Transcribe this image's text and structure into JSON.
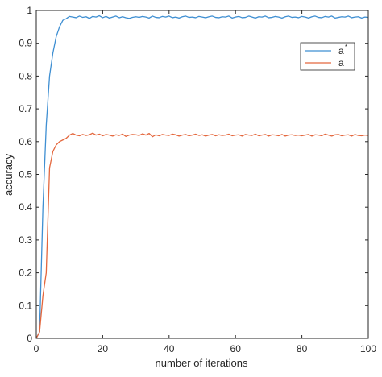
{
  "chart_data": {
    "type": "line",
    "title": "",
    "xlabel": "number of iterations",
    "ylabel": "accuracy",
    "xlim": [
      0,
      100
    ],
    "ylim": [
      0,
      1
    ],
    "grid": false,
    "legend_position": "top-right",
    "x_ticks": [
      0,
      20,
      40,
      60,
      80,
      100
    ],
    "y_ticks": [
      0,
      0.1,
      0.2,
      0.3,
      0.4,
      0.5,
      0.6,
      0.7,
      0.8,
      0.9,
      1
    ],
    "x_tick_labels": [
      "0",
      "20",
      "40",
      "60",
      "80",
      "100"
    ],
    "y_tick_labels": [
      "0",
      "0.1",
      "0.2",
      "0.3",
      "0.4",
      "0.5",
      "0.6",
      "0.7",
      "0.8",
      "0.9",
      "1"
    ],
    "series": [
      {
        "name": "a",
        "legend_label": "a",
        "legend_sup": "*",
        "color": "#3f8fd2",
        "x": [
          0,
          1,
          2,
          3,
          4,
          5,
          6,
          7,
          8,
          9,
          10,
          11,
          12,
          13,
          14,
          15,
          16,
          17,
          18,
          19,
          20,
          21,
          22,
          23,
          24,
          25,
          26,
          27,
          28,
          29,
          30,
          31,
          32,
          33,
          34,
          35,
          36,
          37,
          38,
          39,
          40,
          41,
          42,
          43,
          44,
          45,
          46,
          47,
          48,
          49,
          50,
          51,
          52,
          53,
          54,
          55,
          56,
          57,
          58,
          59,
          60,
          61,
          62,
          63,
          64,
          65,
          66,
          67,
          68,
          69,
          70,
          71,
          72,
          73,
          74,
          75,
          76,
          77,
          78,
          79,
          80,
          81,
          82,
          83,
          84,
          85,
          86,
          87,
          88,
          89,
          90,
          91,
          92,
          93,
          94,
          95,
          96,
          97,
          98,
          99,
          100
        ],
        "y": [
          0,
          0.02,
          0.4,
          0.65,
          0.8,
          0.87,
          0.92,
          0.95,
          0.97,
          0.975,
          0.982,
          0.98,
          0.978,
          0.983,
          0.979,
          0.981,
          0.976,
          0.982,
          0.98,
          0.984,
          0.978,
          0.982,
          0.977,
          0.98,
          0.983,
          0.978,
          0.981,
          0.978,
          0.976,
          0.979,
          0.981,
          0.979,
          0.982,
          0.98,
          0.977,
          0.983,
          0.979,
          0.978,
          0.982,
          0.98,
          0.983,
          0.978,
          0.98,
          0.977,
          0.981,
          0.983,
          0.979,
          0.98,
          0.978,
          0.982,
          0.98,
          0.978,
          0.981,
          0.983,
          0.979,
          0.978,
          0.981,
          0.98,
          0.983,
          0.977,
          0.98,
          0.982,
          0.978,
          0.979,
          0.983,
          0.98,
          0.977,
          0.981,
          0.98,
          0.983,
          0.978,
          0.979,
          0.982,
          0.98,
          0.977,
          0.981,
          0.983,
          0.979,
          0.98,
          0.978,
          0.982,
          0.98,
          0.977,
          0.981,
          0.983,
          0.979,
          0.978,
          0.982,
          0.98,
          0.983,
          0.977,
          0.979,
          0.981,
          0.98,
          0.983,
          0.978,
          0.98,
          0.981,
          0.977,
          0.98,
          0.979
        ]
      },
      {
        "name": "a",
        "legend_label": "a",
        "legend_sup": "",
        "color": "#e4673d",
        "x": [
          0,
          1,
          2,
          3,
          4,
          5,
          6,
          7,
          8,
          9,
          10,
          11,
          12,
          13,
          14,
          15,
          16,
          17,
          18,
          19,
          20,
          21,
          22,
          23,
          24,
          25,
          26,
          27,
          28,
          29,
          30,
          31,
          32,
          33,
          34,
          35,
          36,
          37,
          38,
          39,
          40,
          41,
          42,
          43,
          44,
          45,
          46,
          47,
          48,
          49,
          50,
          51,
          52,
          53,
          54,
          55,
          56,
          57,
          58,
          59,
          60,
          61,
          62,
          63,
          64,
          65,
          66,
          67,
          68,
          69,
          70,
          71,
          72,
          73,
          74,
          75,
          76,
          77,
          78,
          79,
          80,
          81,
          82,
          83,
          84,
          85,
          86,
          87,
          88,
          89,
          90,
          91,
          92,
          93,
          94,
          95,
          96,
          97,
          98,
          99,
          100
        ],
        "y": [
          0,
          0.02,
          0.13,
          0.2,
          0.52,
          0.57,
          0.59,
          0.6,
          0.605,
          0.61,
          0.62,
          0.625,
          0.62,
          0.618,
          0.622,
          0.619,
          0.621,
          0.626,
          0.62,
          0.623,
          0.618,
          0.622,
          0.62,
          0.617,
          0.621,
          0.619,
          0.623,
          0.616,
          0.62,
          0.622,
          0.621,
          0.619,
          0.624,
          0.62,
          0.625,
          0.615,
          0.621,
          0.618,
          0.622,
          0.62,
          0.619,
          0.623,
          0.621,
          0.617,
          0.62,
          0.622,
          0.618,
          0.62,
          0.623,
          0.619,
          0.621,
          0.617,
          0.62,
          0.622,
          0.618,
          0.621,
          0.619,
          0.62,
          0.623,
          0.618,
          0.62,
          0.621,
          0.617,
          0.622,
          0.62,
          0.619,
          0.623,
          0.618,
          0.62,
          0.622,
          0.617,
          0.621,
          0.62,
          0.618,
          0.622,
          0.617,
          0.62,
          0.621,
          0.619,
          0.62,
          0.618,
          0.62,
          0.622,
          0.617,
          0.621,
          0.62,
          0.618,
          0.623,
          0.62,
          0.617,
          0.621,
          0.622,
          0.618,
          0.62,
          0.621,
          0.617,
          0.622,
          0.619,
          0.618,
          0.62,
          0.619
        ]
      }
    ]
  }
}
